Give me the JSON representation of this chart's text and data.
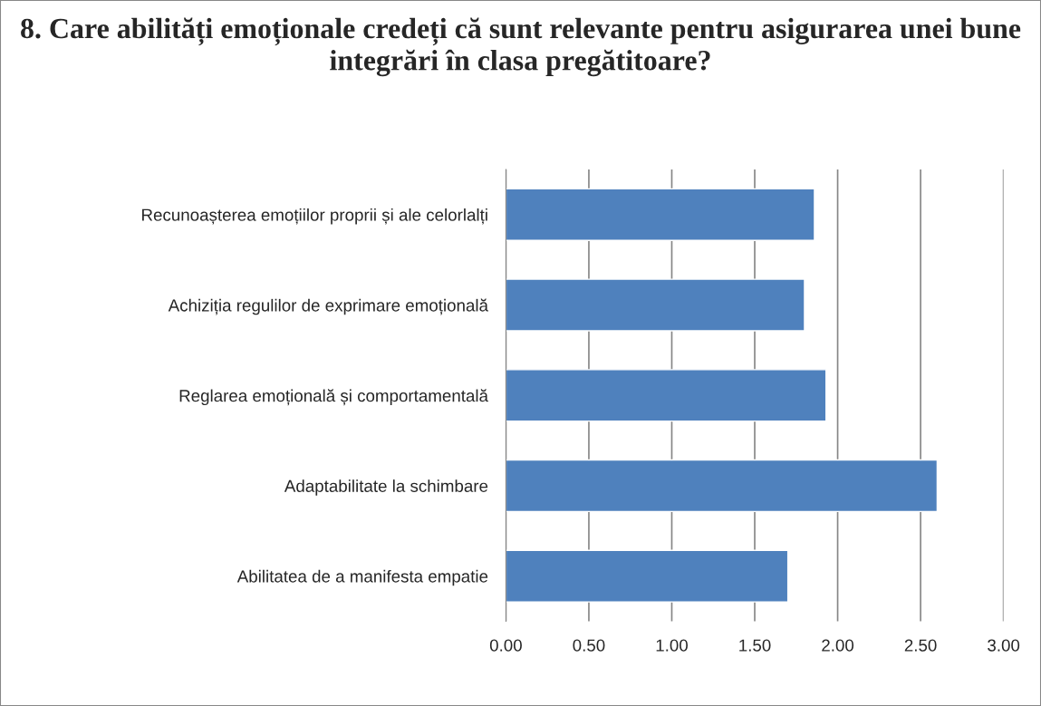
{
  "chart_data": {
    "type": "bar",
    "orientation": "horizontal",
    "title": "8. Care abilități emoționale credeți că sunt relevante pentru asigurarea unei bune integrări în clasa pregătitoare?",
    "categories": [
      "Recunoașterea emoțiilor proprii și ale celorlalți",
      "Achiziția regulilor de exprimare emoțională",
      "Reglarea emoțională și comportamentală",
      "Adaptabilitate la schimbare",
      "Abilitatea de a manifesta empatie"
    ],
    "values": [
      1.86,
      1.8,
      1.93,
      2.6,
      1.7
    ],
    "color": "#4f81bd",
    "xlim": [
      0,
      3
    ],
    "xticks": [
      {
        "value": 0,
        "label": "0.00"
      },
      {
        "value": 0.5,
        "label": "0.50"
      },
      {
        "value": 1,
        "label": "1.00"
      },
      {
        "value": 1.5,
        "label": "1.50"
      },
      {
        "value": 2,
        "label": "2.00"
      },
      {
        "value": 2.5,
        "label": "2.50"
      },
      {
        "value": 3,
        "label": "3.00"
      }
    ],
    "grid": "x",
    "legend": false
  }
}
